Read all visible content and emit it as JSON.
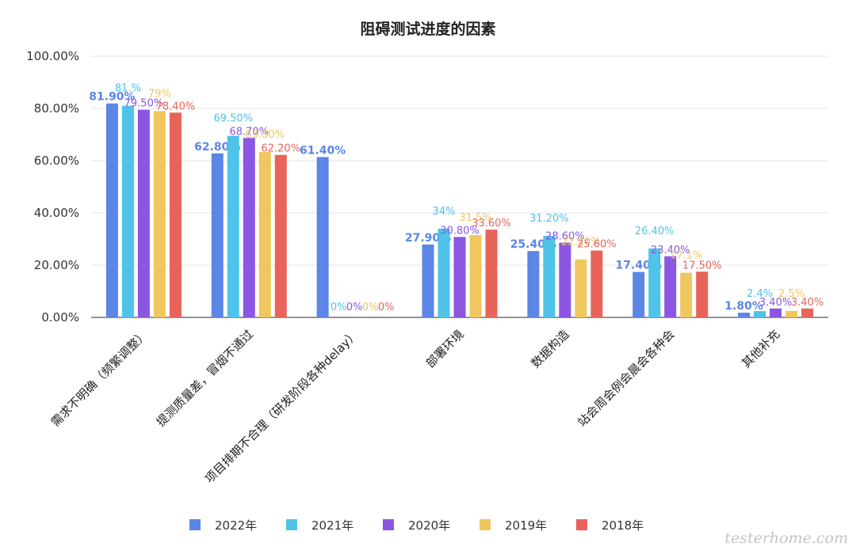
{
  "chart_data": {
    "type": "bar",
    "title": "阻碍测试进度的因素",
    "xlabel": "",
    "ylabel": "",
    "ylim": [
      0,
      100
    ],
    "yticks": [
      "0.00%",
      "20.00%",
      "40.00%",
      "60.00%",
      "80.00%",
      "100.00%"
    ],
    "grid": true,
    "legend_position": "bottom",
    "categories": [
      "需求不明确（频繁调整）",
      "提测质量差，冒烟不通过",
      "项目排期不合理（研发阶段各种delay）",
      "部署环境",
      "数据构造",
      "站会周会例会晨会各种会",
      "其他补充"
    ],
    "series": [
      {
        "name": "2022年",
        "color": "#5b86e5",
        "values": [
          81.9,
          62.8,
          61.4,
          27.9,
          25.4,
          17.4,
          1.8
        ],
        "labels": [
          "81.90%",
          "62.80%",
          "61.40%",
          "27.90%",
          "25.40%",
          "17.40%",
          "1.80%"
        ]
      },
      {
        "name": "2021年",
        "color": "#4fc3e8",
        "values": [
          81,
          69.5,
          0,
          34,
          31.2,
          26.4,
          2.4
        ],
        "labels": [
          "81.%",
          "69.50%",
          "0%",
          "34%",
          "31.20%",
          "26.40%",
          "2.4%"
        ]
      },
      {
        "name": "2020年",
        "color": "#8a56e2",
        "values": [
          79.5,
          68.7,
          0,
          30.8,
          28.6,
          23.4,
          3.4
        ],
        "labels": [
          "79.50%",
          "68.70%",
          "0%",
          "30.80%",
          "28.60%",
          "23.40%",
          "3.40%"
        ]
      },
      {
        "name": "2019年",
        "color": "#efc75e",
        "values": [
          79,
          63.3,
          0,
          31.5,
          22.2,
          17.1,
          2.5
        ],
        "labels": [
          "79%",
          "63.30%",
          "0%",
          "31.5%",
          "22.20%",
          "17.1%",
          "2.5%"
        ]
      },
      {
        "name": "2018年",
        "color": "#e8645a",
        "values": [
          78.4,
          62.2,
          0,
          33.6,
          25.6,
          17.5,
          3.4
        ],
        "labels": [
          "78.40%",
          "62.20%",
          "0%",
          "33.60%",
          "25.60%",
          "17.50%",
          "3.40%"
        ]
      }
    ]
  },
  "watermark": "testerhome.com"
}
